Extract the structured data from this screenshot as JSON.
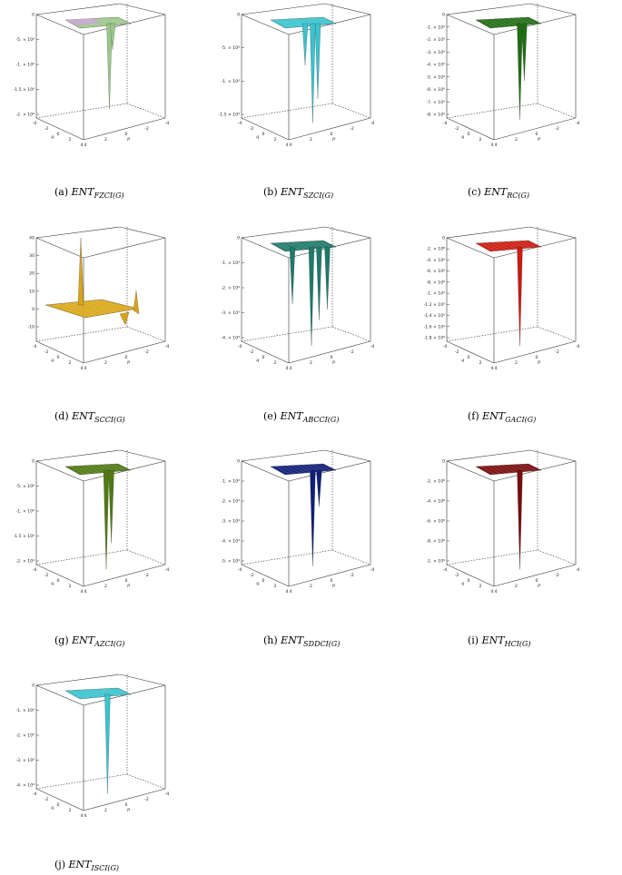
{
  "chart_data": [
    {
      "type": "surface",
      "tag": "(a)",
      "ent": "ENT",
      "sub": "FZCI(G)",
      "color": "#9cc88a",
      "color2": "#cfa6dc",
      "zticks": [
        "0",
        "-5. × 10⁸",
        "-1. × 10⁹",
        "-1.5 × 10⁹",
        "-2. × 10⁹"
      ],
      "xticks": [
        "-4",
        "-2",
        "0",
        "2",
        "4"
      ],
      "yticks": [
        "4",
        "2",
        "0",
        "-2",
        "-4"
      ],
      "xlabel": "q",
      "ylabel": "p",
      "spikes": [
        {
          "depth": 0.82,
          "pos": 0.55
        },
        {
          "depth": 0.25,
          "pos": 0.6
        }
      ]
    },
    {
      "type": "surface",
      "tag": "(b)",
      "ent": "ENT",
      "sub": "SZCI(G)",
      "color": "#39c4cf",
      "zticks": [
        "0",
        "-5. × 10⁸",
        "-1. × 10⁹",
        "-1.5 × 10⁹"
      ],
      "xticks": [
        "-4",
        "-2",
        "0",
        "2",
        "4"
      ],
      "yticks": [
        "4",
        "2",
        "0",
        "-2",
        "-4"
      ],
      "xlabel": "q",
      "ylabel": "p",
      "spikes": [
        {
          "depth": 0.95,
          "pos": 0.52
        },
        {
          "depth": 0.72,
          "pos": 0.6
        },
        {
          "depth": 0.4,
          "pos": 0.4
        }
      ]
    },
    {
      "type": "surface",
      "tag": "(c)",
      "ent": "ENT",
      "sub": "RC(G)",
      "color": "#1f6e12",
      "zticks": [
        "0",
        "-1. × 10⁹",
        "-2. × 10⁹",
        "-3. × 10⁹",
        "-4. × 10⁹",
        "-5. × 10⁹",
        "-6. × 10⁹",
        "-7. × 10⁹",
        "-8. × 10⁹"
      ],
      "xticks": [
        "-4",
        "-2",
        "0",
        "2",
        "4"
      ],
      "yticks": [
        "4",
        "2",
        "0",
        "-2",
        "-4"
      ],
      "xlabel": "q",
      "ylabel": "p",
      "spikes": [
        {
          "depth": 0.92,
          "pos": 0.55
        },
        {
          "depth": 0.55,
          "pos": 0.62
        }
      ]
    },
    {
      "type": "surface",
      "tag": "(d)",
      "ent": "ENT",
      "sub": "SCCI(G)",
      "color": "#d9a514",
      "zticks": [
        "40",
        "30",
        "20",
        "10",
        "0",
        "-10"
      ],
      "xticks": [
        "-4",
        "-2",
        "0",
        "2",
        "4"
      ],
      "yticks": [
        "4",
        "2",
        "0",
        "-2",
        "-4"
      ],
      "xlabel": "q",
      "ylabel": "p",
      "spikes": [
        {
          "depth": 0.0,
          "pos": 0.3
        }
      ]
    },
    {
      "type": "surface",
      "tag": "(e)",
      "ent": "ENT",
      "sub": "ABCCI(G)",
      "color": "#1e7a6a",
      "zticks": [
        "0",
        "-1. × 10⁹",
        "-2. × 10⁹",
        "-3. × 10⁹",
        "-4. × 10⁹"
      ],
      "xticks": [
        "-4",
        "-2",
        "0",
        "2",
        "4"
      ],
      "yticks": [
        "4",
        "2",
        "0",
        "-2",
        "-4"
      ],
      "xlabel": "q",
      "ylabel": "p",
      "spikes": [
        {
          "depth": 0.95,
          "pos": 0.5
        },
        {
          "depth": 0.7,
          "pos": 0.62
        },
        {
          "depth": 0.55,
          "pos": 0.2
        },
        {
          "depth": 0.6,
          "pos": 0.75
        }
      ]
    },
    {
      "type": "surface",
      "tag": "(f)",
      "ent": "ENT",
      "sub": "GACI(G)",
      "color": "#cc1a0f",
      "zticks": [
        "0",
        "-2. × 10⁸",
        "-4. × 10⁸",
        "-6. × 10⁸",
        "-8. × 10⁸",
        "-1. × 10⁹",
        "-1.2 × 10⁹",
        "-1.4 × 10⁹",
        "-1.6 × 10⁹",
        "-1.8 × 10⁹"
      ],
      "xticks": [
        "-4",
        "-2",
        "0",
        "2",
        "4"
      ],
      "yticks": [
        "4",
        "2",
        "0",
        "-2",
        "-4"
      ],
      "xlabel": "q",
      "ylabel": "p",
      "spikes": [
        {
          "depth": 0.95,
          "pos": 0.55
        }
      ]
    },
    {
      "type": "surface",
      "tag": "(g)",
      "ent": "ENT",
      "sub": "AZCI(G)",
      "color": "#4f7a12",
      "zticks": [
        "0",
        "-5. × 10⁸",
        "-1. × 10⁹",
        "-1.5 × 10⁹",
        "-2. × 10⁹"
      ],
      "xticks": [
        "-4",
        "-2",
        "0",
        "2",
        "4"
      ],
      "yticks": [
        "4",
        "2",
        "0",
        "-2",
        "-4"
      ],
      "xlabel": "q",
      "ylabel": "p",
      "spikes": [
        {
          "depth": 0.95,
          "pos": 0.5
        },
        {
          "depth": 0.7,
          "pos": 0.58
        }
      ]
    },
    {
      "type": "surface",
      "tag": "(h)",
      "ent": "ENT",
      "sub": "SDDCI(G)",
      "color": "#0f1e78",
      "zticks": [
        "0",
        "-1. × 10⁹",
        "-2. × 10⁹",
        "-3. × 10⁹",
        "-4. × 10⁹",
        "-5. × 10⁹"
      ],
      "xticks": [
        "-4",
        "-2",
        "0",
        "2",
        "4"
      ],
      "yticks": [
        "4",
        "2",
        "0",
        "-2",
        "-4"
      ],
      "xlabel": "q",
      "ylabel": "p",
      "spikes": [
        {
          "depth": 0.92,
          "pos": 0.52
        },
        {
          "depth": 0.35,
          "pos": 0.62
        }
      ]
    },
    {
      "type": "surface",
      "tag": "(i)",
      "ent": "ENT",
      "sub": "HCI(G)",
      "color": "#7a0c0c",
      "zticks": [
        "0",
        "-2. × 10⁸",
        "-4. × 10⁸",
        "-6. × 10⁸",
        "-8. × 10⁸",
        "-1. × 10⁹"
      ],
      "xticks": [
        "-4",
        "-2",
        "0",
        "2",
        "4"
      ],
      "yticks": [
        "4",
        "2",
        "0",
        "-2",
        "-4"
      ],
      "xlabel": "q",
      "ylabel": "p",
      "spikes": [
        {
          "depth": 0.95,
          "pos": 0.55
        }
      ]
    },
    {
      "type": "surface",
      "tag": "(j)",
      "ent": "ENT",
      "sub": "ISCI(G)",
      "color": "#39c4cf",
      "zticks": [
        "0",
        "-1. × 10⁹",
        "-2. × 10⁹",
        "-3. × 10⁹",
        "-4. × 10⁹"
      ],
      "xticks": [
        "-4",
        "-2",
        "0",
        "2",
        "4"
      ],
      "yticks": [
        "4",
        "2",
        "0",
        "-2",
        "-4"
      ],
      "xlabel": "q",
      "ylabel": "p",
      "spikes": [
        {
          "depth": 0.95,
          "pos": 0.52
        }
      ]
    }
  ]
}
